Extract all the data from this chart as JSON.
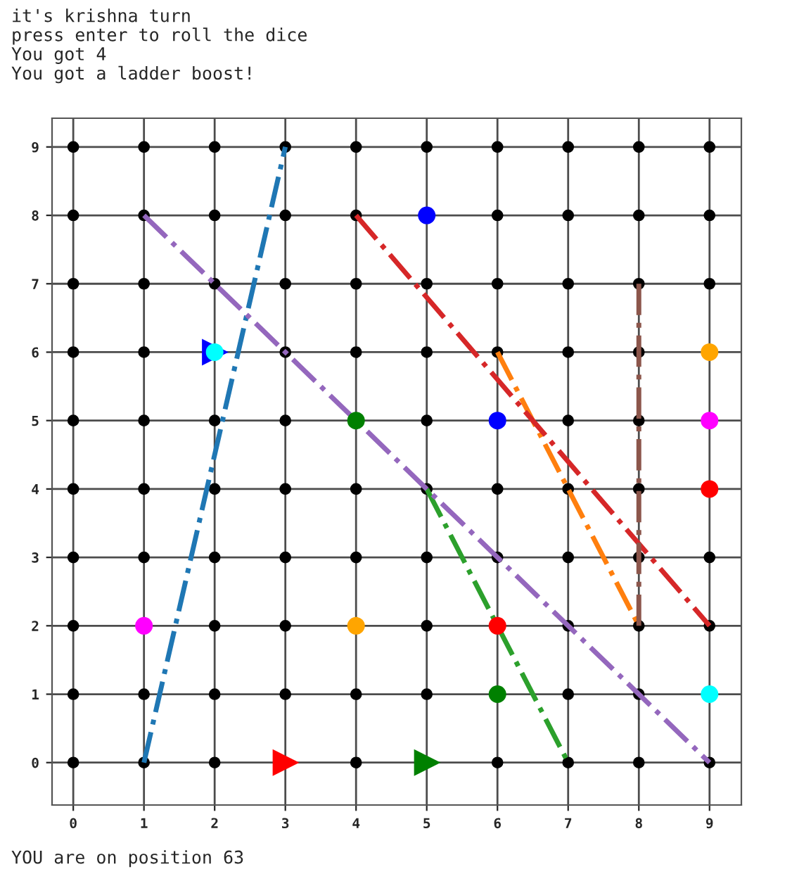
{
  "chart_data": {
    "type": "scatter",
    "title": "it's krishna turn\npress enter to roll the dice\nYou got 4\nYou got a ladder boost!",
    "annotations": [
      "YOU are on position 63"
    ],
    "xlim": [
      -0.3,
      9.45
    ],
    "ylim": [
      -0.62,
      9.42
    ],
    "xticks": [
      0,
      1,
      2,
      3,
      4,
      5,
      6,
      7,
      8,
      9
    ],
    "yticks": [
      0,
      1,
      2,
      3,
      4,
      5,
      6,
      7,
      8,
      9
    ],
    "grid": true,
    "legend": false,
    "series": [
      {
        "marker": "circle",
        "color": "#000000",
        "x": [
          0,
          0,
          0,
          0,
          0,
          0,
          0,
          0,
          0,
          0,
          1,
          1,
          1,
          1,
          1,
          1,
          1,
          1,
          1,
          2,
          2,
          2,
          2,
          2,
          2,
          2,
          2,
          2,
          3,
          3,
          3,
          3,
          3,
          3,
          3,
          3,
          3,
          4,
          4,
          4,
          4,
          4,
          4,
          4,
          4,
          5,
          5,
          5,
          5,
          5,
          5,
          5,
          5,
          6,
          6,
          6,
          6,
          6,
          6,
          6,
          7,
          7,
          7,
          7,
          7,
          7,
          7,
          7,
          7,
          7,
          8,
          8,
          8,
          8,
          8,
          8,
          8,
          8,
          8,
          8,
          9,
          9,
          9,
          9,
          9,
          9
        ],
        "values": [
          0,
          1,
          2,
          3,
          4,
          5,
          6,
          7,
          8,
          9,
          0,
          1,
          3,
          4,
          5,
          6,
          7,
          8,
          9,
          0,
          1,
          2,
          3,
          4,
          5,
          7,
          8,
          9,
          1,
          2,
          3,
          4,
          5,
          6,
          7,
          8,
          9,
          0,
          1,
          3,
          4,
          6,
          7,
          8,
          9,
          1,
          2,
          3,
          4,
          5,
          6,
          7,
          9,
          0,
          3,
          4,
          6,
          7,
          8,
          9,
          0,
          1,
          2,
          3,
          4,
          5,
          6,
          7,
          8,
          9,
          0,
          1,
          2,
          3,
          4,
          5,
          6,
          7,
          8,
          9,
          0,
          2,
          3,
          7,
          8,
          9
        ]
      },
      {
        "type": "line",
        "line_style": "dashdot",
        "color": "#1f77b4",
        "x": [
          1,
          3
        ],
        "values": [
          0,
          9
        ]
      },
      {
        "type": "line",
        "line_style": "dashdot",
        "color": "#ff7f0e",
        "x": [
          6,
          8
        ],
        "values": [
          6,
          2
        ]
      },
      {
        "type": "line",
        "line_style": "dashdot",
        "color": "#2ca02c",
        "x": [
          5,
          7
        ],
        "values": [
          4,
          0
        ]
      },
      {
        "type": "line",
        "line_style": "dashdot",
        "color": "#d62728",
        "x": [
          4,
          9
        ],
        "values": [
          8,
          2
        ]
      },
      {
        "type": "line",
        "line_style": "dashdot",
        "color": "#9467bd",
        "x": [
          1,
          9
        ],
        "values": [
          8,
          0
        ]
      },
      {
        "type": "line",
        "line_style": "dashdot",
        "color": "#8c564b",
        "x": [
          8,
          8
        ],
        "values": [
          7,
          2
        ]
      },
      {
        "type": "scatter",
        "marker": "circle",
        "color": "#0000ff",
        "x": [
          5,
          6
        ],
        "values": [
          8,
          5
        ]
      },
      {
        "type": "scatter",
        "marker": "triangle",
        "color": "#0000ff",
        "x": [
          2
        ],
        "values": [
          6
        ]
      },
      {
        "type": "scatter",
        "marker": "circle",
        "color": "#00ffff",
        "x": [
          2,
          9
        ],
        "values": [
          6,
          1
        ]
      },
      {
        "type": "scatter",
        "marker": "circle",
        "color": "#ff00ff",
        "x": [
          9,
          1
        ],
        "values": [
          5,
          2
        ]
      },
      {
        "type": "scatter",
        "marker": "circle",
        "color": "#ffa500",
        "x": [
          9,
          4
        ],
        "values": [
          6,
          2
        ]
      },
      {
        "type": "scatter",
        "marker": "circle",
        "color": "#ff0000",
        "x": [
          9,
          6
        ],
        "values": [
          4,
          2
        ]
      },
      {
        "type": "scatter",
        "marker": "circle",
        "color": "#008000",
        "x": [
          4,
          6
        ],
        "values": [
          5,
          1
        ]
      },
      {
        "type": "scatter",
        "marker": "triangle",
        "color": "#ff0000",
        "x": [
          3
        ],
        "values": [
          0
        ]
      },
      {
        "type": "scatter",
        "marker": "triangle",
        "color": "#008000",
        "x": [
          5
        ],
        "values": [
          0
        ]
      }
    ]
  }
}
